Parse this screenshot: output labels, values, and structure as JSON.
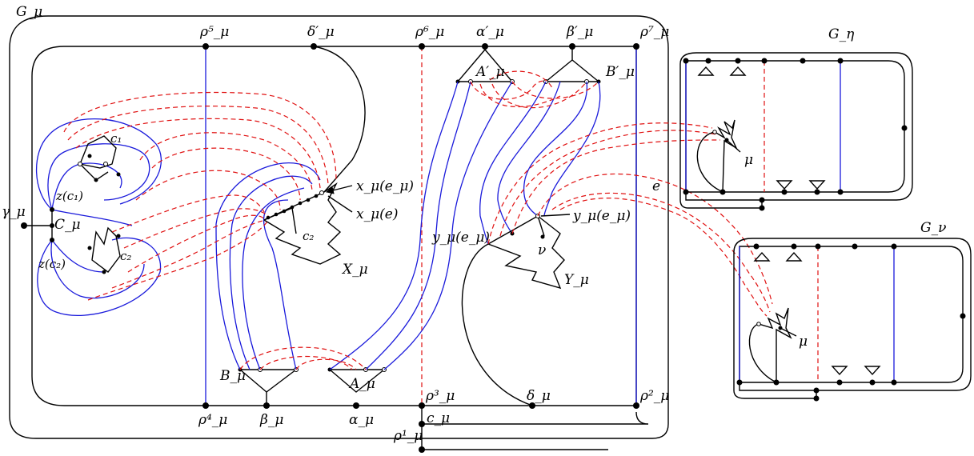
{
  "labels": {
    "G_mu": "G_μ",
    "G_eta": "G_η",
    "G_nu": "G_ν",
    "gamma_mu": "γ_μ",
    "rho1": "ρ¹_μ",
    "rho2": "ρ²_μ",
    "rho3": "ρ³_μ",
    "rho4": "ρ⁴_μ",
    "rho5": "ρ⁵_μ",
    "rho6": "ρ⁶_μ",
    "rho7": "ρ⁷_μ",
    "delta_prime": "δ′_μ",
    "delta": "δ_μ",
    "alpha_prime": "α′_μ",
    "beta_prime": "β′_μ",
    "alpha": "α_μ",
    "beta": "β_μ",
    "A_prime": "A′_μ",
    "B_prime": "B′_μ",
    "A": "A_μ",
    "B": "B_μ",
    "c_mu": "c_μ",
    "C_mu": "C_μ",
    "c1": "c₁",
    "c2_left": "c₂",
    "c2_mid": "c₂",
    "z_c1": "z(c₁)",
    "z_c2": "z(c₂)",
    "x_e_mu": "x_μ(e_μ)",
    "x_e": "x_μ(e)",
    "X_mu": "X_μ",
    "y_e_mu_left": "y_μ(e_μ)",
    "y_e_mu_right": "y_μ(e_μ)",
    "Y_mu": "Y_μ",
    "nu": "ν",
    "e": "e",
    "mu_eta": "μ",
    "mu_nu": "μ"
  },
  "colors": {
    "black": "#000000",
    "blue": "#1a1adb",
    "red_dashed": "#e01010"
  }
}
